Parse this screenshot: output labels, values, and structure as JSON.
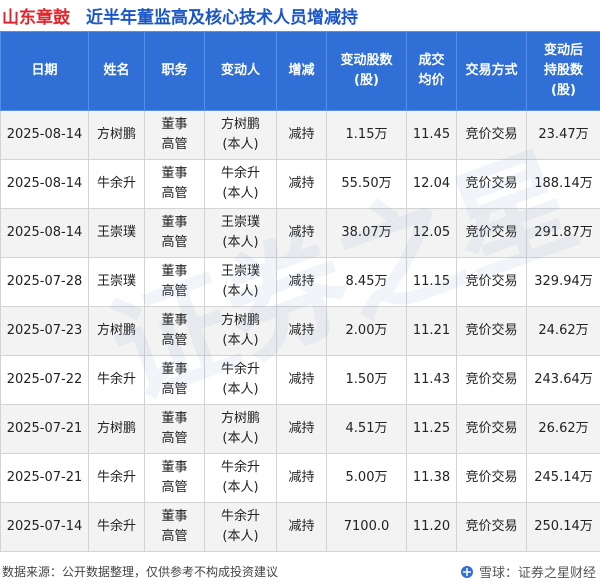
{
  "title": {
    "brand": "山东章鼓",
    "main": "近半年董监高及核心技术人员增减持"
  },
  "headers": {
    "date": "日期",
    "name": "姓名",
    "position": "职务",
    "changer": "变动人",
    "direction": "增减",
    "shares": "变动股数\n(股)",
    "price": "成交\n均价",
    "method": "交易方式",
    "after": "变动后\n持股数\n(股)"
  },
  "rows": [
    {
      "date": "2025-08-14",
      "name": "方树鹏",
      "position": "董事\n高管",
      "changer": "方树鹏\n(本人)",
      "direction": "减持",
      "shares": "1.15万",
      "price": "11.45",
      "method": "竞价交易",
      "after": "23.47万"
    },
    {
      "date": "2025-08-14",
      "name": "牛余升",
      "position": "董事\n高管",
      "changer": "牛余升\n(本人)",
      "direction": "减持",
      "shares": "55.50万",
      "price": "12.04",
      "method": "竞价交易",
      "after": "188.14万"
    },
    {
      "date": "2025-08-14",
      "name": "王崇璞",
      "position": "董事\n高管",
      "changer": "王崇璞\n(本人)",
      "direction": "减持",
      "shares": "38.07万",
      "price": "12.05",
      "method": "竞价交易",
      "after": "291.87万"
    },
    {
      "date": "2025-07-28",
      "name": "王崇璞",
      "position": "董事\n高管",
      "changer": "王崇璞\n(本人)",
      "direction": "减持",
      "shares": "8.45万",
      "price": "11.15",
      "method": "竞价交易",
      "after": "329.94万"
    },
    {
      "date": "2025-07-23",
      "name": "方树鹏",
      "position": "董事\n高管",
      "changer": "方树鹏\n(本人)",
      "direction": "减持",
      "shares": "2.00万",
      "price": "11.21",
      "method": "竞价交易",
      "after": "24.62万"
    },
    {
      "date": "2025-07-22",
      "name": "牛余升",
      "position": "董事\n高管",
      "changer": "牛余升\n(本人)",
      "direction": "减持",
      "shares": "1.50万",
      "price": "11.43",
      "method": "竞价交易",
      "after": "243.64万"
    },
    {
      "date": "2025-07-21",
      "name": "方树鹏",
      "position": "董事\n高管",
      "changer": "方树鹏\n(本人)",
      "direction": "减持",
      "shares": "4.51万",
      "price": "11.25",
      "method": "竞价交易",
      "after": "26.62万"
    },
    {
      "date": "2025-07-21",
      "name": "牛余升",
      "position": "董事\n高管",
      "changer": "牛余升\n(本人)",
      "direction": "减持",
      "shares": "5.00万",
      "price": "11.38",
      "method": "竞价交易",
      "after": "245.14万"
    },
    {
      "date": "2025-07-14",
      "name": "牛余升",
      "position": "董事\n高管",
      "changer": "牛余升\n(本人)",
      "direction": "减持",
      "shares": "7100.0",
      "price": "11.20",
      "method": "竞价交易",
      "after": "250.14万"
    }
  ],
  "footer": {
    "source": "数据来源：公开数据整理，仅供参考不构成投资建议",
    "logo_text": "雪球：证券之星财经"
  },
  "watermark": "证券之星",
  "colors": {
    "header_bg": "#2f6fd6",
    "brand": "#e2242b",
    "title": "#1a56c8",
    "change_green": "#2e9a3e"
  }
}
